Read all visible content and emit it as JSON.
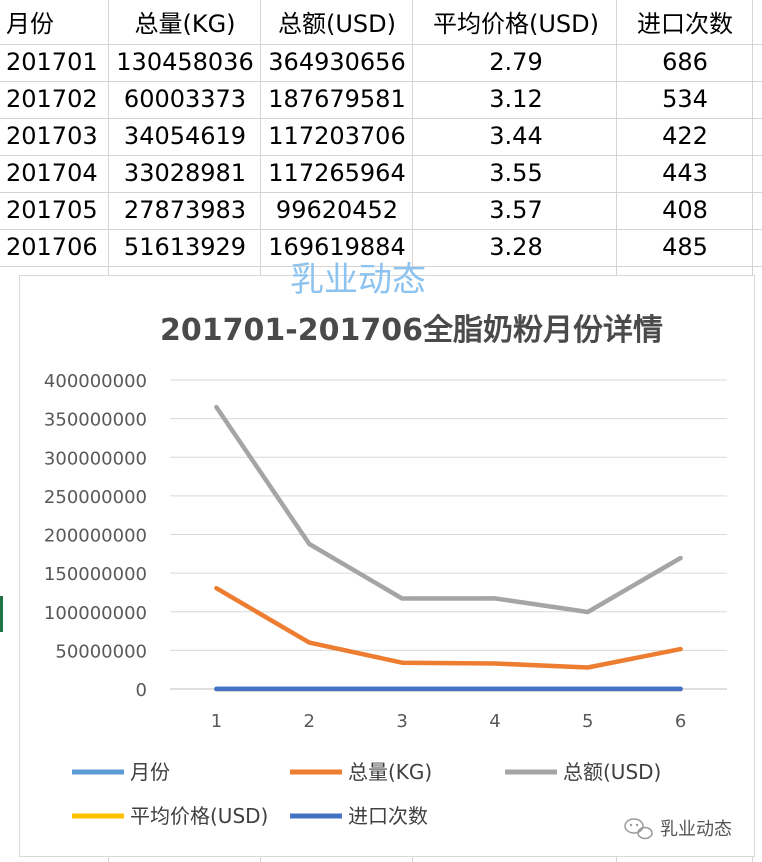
{
  "sheet": {
    "headers": [
      "月份",
      "总量(KG)",
      "总额(USD)",
      "平均价格(USD)",
      "进口次数"
    ],
    "rows": [
      [
        "201701",
        "130458036",
        "364930656",
        "2.79",
        "686"
      ],
      [
        "201702",
        "60003373",
        "187679581",
        "3.12",
        "534"
      ],
      [
        "201703",
        "34054619",
        "117203706",
        "3.44",
        "422"
      ],
      [
        "201704",
        "33028981",
        "117265964",
        "3.55",
        "443"
      ],
      [
        "201705",
        "27873983",
        "99620452",
        "3.57",
        "408"
      ],
      [
        "201706",
        "51613929",
        "169619884",
        "3.28",
        "485"
      ]
    ]
  },
  "watermark": {
    "top_text": "乳业动态",
    "bottom_text": "乳业动态"
  },
  "chart_data": {
    "type": "line",
    "title": "201701-201706全脂奶粉月份详情",
    "categories": [
      "1",
      "2",
      "3",
      "4",
      "5",
      "6"
    ],
    "ylim": [
      0,
      400000000
    ],
    "yticks": [
      "0",
      "50000000",
      "100000000",
      "150000000",
      "200000000",
      "250000000",
      "300000000",
      "350000000",
      "400000000"
    ],
    "grid": true,
    "legend_position": "bottom",
    "series": [
      {
        "name": "月份",
        "color": "#5b9bd5",
        "values": [
          201701,
          201702,
          201703,
          201704,
          201705,
          201706
        ]
      },
      {
        "name": "总量(KG)",
        "color": "#ed7d31",
        "values": [
          130458036,
          60003373,
          34054619,
          33028981,
          27873983,
          51613929
        ]
      },
      {
        "name": "总额(USD)",
        "color": "#a5a5a5",
        "values": [
          364930656,
          187679581,
          117203706,
          117265964,
          99620452,
          169619884
        ]
      },
      {
        "name": "平均价格(USD)",
        "color": "#ffc000",
        "values": [
          2.79,
          3.12,
          3.44,
          3.55,
          3.57,
          3.28
        ]
      },
      {
        "name": "进口次数",
        "color": "#4472c4",
        "values": [
          686,
          534,
          422,
          443,
          408,
          485
        ]
      }
    ]
  }
}
